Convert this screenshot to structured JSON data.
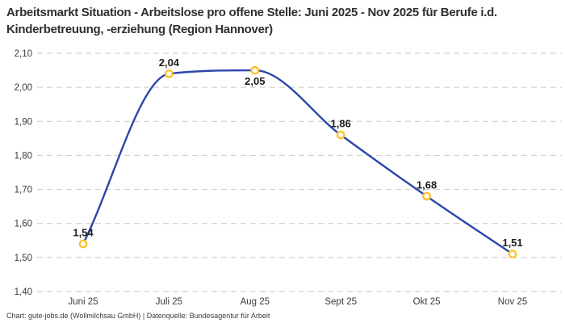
{
  "chart_data": {
    "type": "line",
    "title": "Arbeitsmarkt Situation - Arbeitslose pro offene Stelle: Juni 2025 - Nov 2025 für Berufe i.d. Kinderbetreuung, -erziehung (Region Hannover)",
    "categories": [
      "Juni 25",
      "Juli 25",
      "Aug 25",
      "Sept 25",
      "Okt 25",
      "Nov 25"
    ],
    "values": [
      1.54,
      2.04,
      2.05,
      1.86,
      1.68,
      1.51
    ],
    "value_labels": [
      "1,54",
      "2,04",
      "2,05",
      "1,86",
      "1,68",
      "1,51"
    ],
    "label_positions": [
      "above",
      "above",
      "below",
      "above",
      "above",
      "above"
    ],
    "xlabel": "",
    "ylabel": "",
    "ylim": [
      1.4,
      2.1
    ],
    "y_tick_values": [
      2.1,
      2.0,
      1.9,
      1.8,
      1.7,
      1.6,
      1.5,
      1.4
    ],
    "y_tick_labels": [
      "2,10",
      "2,00",
      "1,90",
      "1,80",
      "1,70",
      "1,60",
      "1,50",
      "1,40"
    ],
    "grid": "horizontal-dashed",
    "legend": "none",
    "line_style": "smooth-monotone",
    "marker": "open-circle"
  },
  "footer": {
    "text": "Chart: gute-jobs.de (Wollmilchsau GmbH) | Datenquelle: Bundesagentur für Arbeit"
  },
  "colors": {
    "line": "#2b47a8",
    "marker_ring": "#fdc431",
    "marker_fill": "#ffffff",
    "gridline": "#c9c9c9",
    "title_text": "#2f2f2f",
    "axis_text": "#3a3a3a",
    "data_label_text": "#1c1c1c",
    "background": "#ffffff"
  }
}
